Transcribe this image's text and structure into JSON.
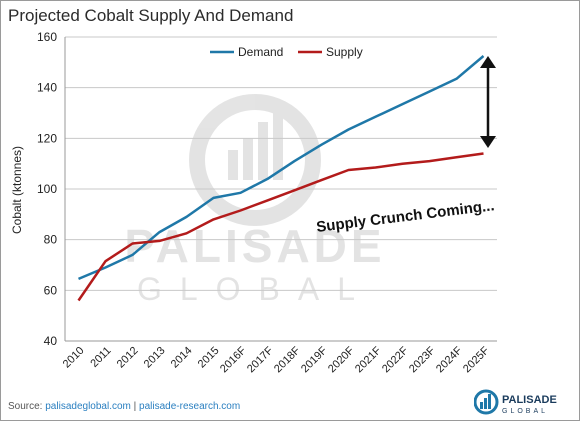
{
  "title": "Projected Cobalt Supply And Demand",
  "source": {
    "prefix": "Source: ",
    "link1": "palisadeglobal.com",
    "separator": "  |  ",
    "link2": "palisade-research.com"
  },
  "watermark": {
    "line1": "PALISADE",
    "line2": "GLOBAL"
  },
  "logo": {
    "line1": "PALISADE",
    "line2": "GLOBAL"
  },
  "annotation": "Supply Crunch Coming...",
  "colors": {
    "demand": "#1f78a8",
    "supply": "#b31b1b",
    "grid": "#c8c8c8"
  },
  "chart_data": {
    "type": "line",
    "title": "Projected Cobalt Supply And Demand",
    "xlabel": "",
    "ylabel": "Cobalt (ktonnes)",
    "ylim": [
      40,
      160
    ],
    "yticks": [
      40,
      60,
      80,
      100,
      120,
      140,
      160
    ],
    "grid": true,
    "legend": "top-center",
    "x": [
      "2010",
      "2011",
      "2012",
      "2013",
      "2014",
      "2015",
      "2016F",
      "2017F",
      "2018F",
      "2019F",
      "2020F",
      "2021F",
      "2022F",
      "2023F",
      "2024F",
      "2025F"
    ],
    "series": [
      {
        "name": "Demand",
        "color": "#1f78a8",
        "values": [
          64.5,
          69,
          74,
          83,
          89,
          96.5,
          98.5,
          104,
          111,
          117.5,
          123.5,
          128.5,
          133.5,
          138.5,
          143.5,
          152.5
        ]
      },
      {
        "name": "Supply",
        "color": "#b31b1b",
        "values": [
          56,
          71.5,
          78.5,
          79.5,
          82.5,
          88,
          91.5,
          95.5,
          99.5,
          103.5,
          107.5,
          108.5,
          110,
          111,
          112.5,
          114
        ]
      }
    ]
  }
}
